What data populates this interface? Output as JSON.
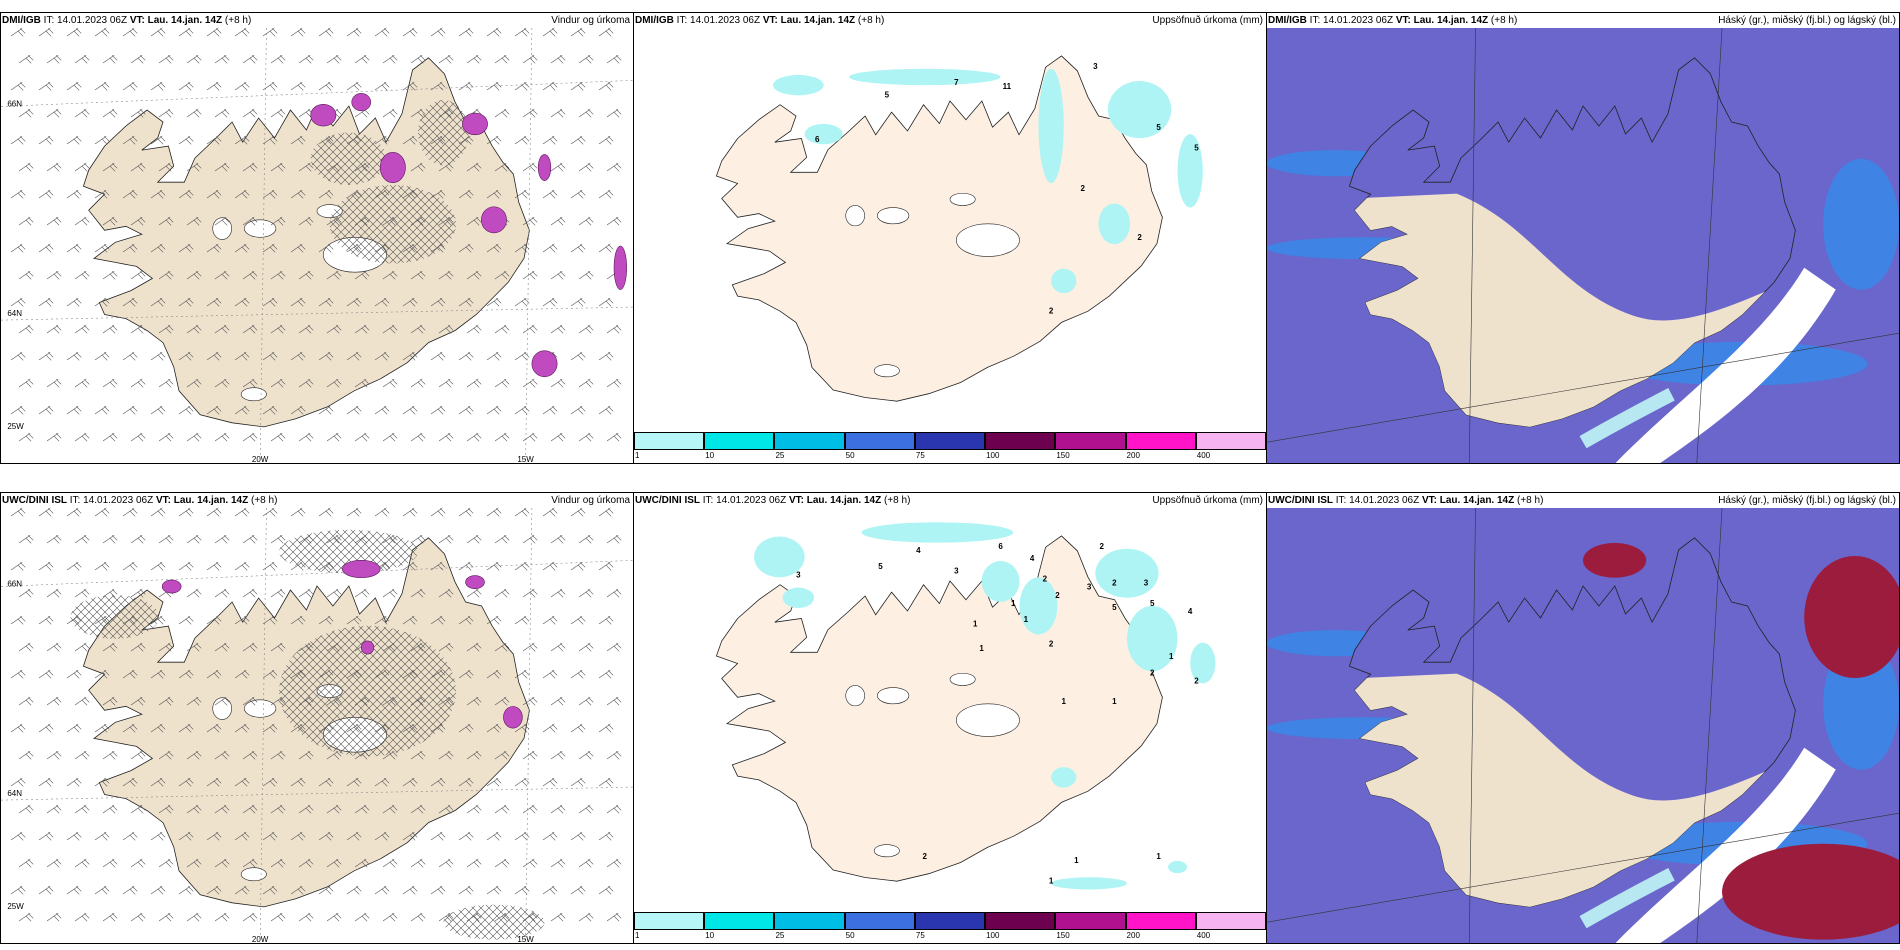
{
  "panels": [
    {
      "model": "DMI/IGB",
      "it_label": "IT:",
      "it": "14.01.2023 06Z",
      "vt_label": "VT:",
      "vt": "Lau. 14.jan. 14Z",
      "lead": "(+8 h)",
      "product": "Vindur og úrkoma",
      "type": "wind"
    },
    {
      "model": "DMI/IGB",
      "it_label": "IT:",
      "it": "14.01.2023 06Z",
      "vt_label": "VT:",
      "vt": "Lau. 14.jan. 14Z",
      "lead": "(+8 h)",
      "product": "Uppsöfnuð úrkoma (mm)",
      "type": "precip"
    },
    {
      "model": "DMI/IGB",
      "it_label": "IT:",
      "it": "14.01.2023 06Z",
      "vt_label": "VT:",
      "vt": "Lau. 14.jan. 14Z",
      "lead": "(+8 h)",
      "product": "Háský (gr.), miðský (fj.bl.) og lágský (bl.)",
      "type": "cloud"
    },
    {
      "model": "UWC/DINI ISL",
      "it_label": "IT:",
      "it": "14.01.2023 06Z",
      "vt_label": "VT:",
      "vt": "Lau. 14.jan. 14Z",
      "lead": "(+8 h)",
      "product": "Vindur og úrkoma",
      "type": "wind"
    },
    {
      "model": "UWC/DINI ISL",
      "it_label": "IT:",
      "it": "14.01.2023 06Z",
      "vt_label": "VT:",
      "vt": "Lau. 14.jan. 14Z",
      "lead": "(+8 h)",
      "product": "Uppsöfnuð úrkoma (mm)",
      "type": "precip"
    },
    {
      "model": "UWC/DINI ISL",
      "it_label": "IT:",
      "it": "14.01.2023 06Z",
      "vt_label": "VT:",
      "vt": "Lau. 14.jan. 14Z",
      "lead": "(+8 h)",
      "product": "Háský (gr.), miðský (fj.bl.) og lágský (bl.)",
      "type": "cloud"
    }
  ],
  "axis_labels": {
    "lon_20": "20W",
    "lon_15": "15W",
    "lon_25": "25W",
    "lat_66": "66N",
    "lat_64": "64N"
  },
  "colorbar": {
    "ticks": [
      "1",
      "10",
      "25",
      "50",
      "75",
      "100",
      "150",
      "200",
      "400"
    ],
    "colors": [
      "#b6f6f6",
      "#00e5e5",
      "#00bde6",
      "#3c6fe0",
      "#2a35b0",
      "#6e0050",
      "#b0128f",
      "#ff14c8",
      "#f6b4f0"
    ]
  },
  "precip_labels_dmi": [
    "5",
    "7",
    "11",
    "3",
    "6",
    "5",
    "5",
    "2",
    "2",
    "2"
  ],
  "precip_labels_uwc": [
    "4",
    "5",
    "3",
    "6",
    "4",
    "3",
    "2",
    "2",
    "3",
    "2",
    "1",
    "2",
    "1",
    "1",
    "2",
    "1",
    "5",
    "3",
    "5",
    "4",
    "1",
    "2",
    "2",
    "1",
    "1",
    "1",
    "1",
    "1",
    "2"
  ],
  "colors": {
    "land": "#efe2cd",
    "land_precip": "#fdf0e3",
    "cloud_high": "#6a66cc",
    "cloud_mid": "#3b86e8",
    "cloud_low": "#b7e8f2",
    "cloud_red": "#9c1c3e",
    "precip_magenta": "#c04ac0"
  }
}
